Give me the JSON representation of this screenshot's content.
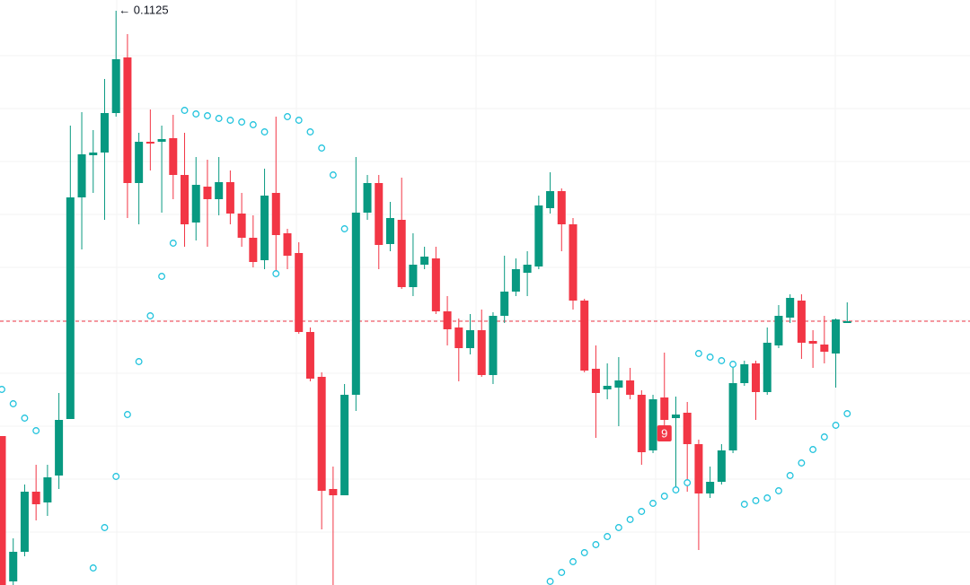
{
  "chart_data": {
    "type": "candlestick",
    "ylim": [
      0.0805,
      0.1131
    ],
    "up_color": "#089981",
    "down_color": "#f23645",
    "sar_color": "#22c3dd",
    "price_line": true,
    "price_line_color": "#f23645",
    "high_label": "← 0.1125",
    "event_label": "9",
    "open": [
      0.0888,
      0.0807,
      0.08235,
      0.0857,
      0.0851,
      0.0866,
      0.08975,
      0.1021,
      0.10445,
      0.1046,
      0.1068,
      0.1099,
      0.1029,
      0.1052,
      0.1052,
      0.1054,
      0.10335,
      0.1007,
      0.1027,
      0.102,
      0.10295,
      0.1012,
      0.09985,
      0.0986,
      0.10235,
      0.1001,
      0.099,
      0.0946,
      0.0921,
      0.08585,
      0.0855,
      0.0911,
      0.10125,
      0.1029,
      0.0995,
      0.10085,
      0.0971,
      0.09835,
      0.0987,
      0.09575,
      0.09485,
      0.0937,
      0.0947,
      0.0922,
      0.0955,
      0.09685,
      0.0979,
      0.09825,
      0.1015,
      0.10245,
      0.1006,
      0.09635,
      0.09255,
      0.0914,
      0.0915,
      0.0919,
      0.0911,
      0.088,
      0.09095,
      0.0898,
      0.0901,
      0.08835,
      0.0856,
      0.08625,
      0.088,
      0.09175,
      0.09285,
      0.09125,
      0.09385,
      0.0954,
      0.09635,
      0.0941,
      0.0939,
      0.0934,
      0.0951
    ],
    "high": [
      0.0888,
      0.0831,
      0.0861,
      0.0872,
      0.0872,
      0.0912,
      0.1061,
      0.10685,
      0.10585,
      0.1087,
      0.1125,
      0.1112,
      0.1057,
      0.107,
      0.1061,
      0.1067,
      0.1057,
      0.10435,
      0.1042,
      0.10435,
      0.1036,
      0.10235,
      0.1011,
      0.1037,
      0.1066,
      0.10035,
      0.0996,
      0.09485,
      0.09235,
      0.0871,
      0.0917,
      0.10435,
      0.10335,
      0.10335,
      0.10185,
      0.1032,
      0.1001,
      0.09935,
      0.09935,
      0.0966,
      0.09535,
      0.0956,
      0.09585,
      0.0957,
      0.09885,
      0.0987,
      0.0991,
      0.1022,
      0.1035,
      0.1026,
      0.10095,
      0.09645,
      0.09385,
      0.09285,
      0.0932,
      0.0926,
      0.09135,
      0.0911,
      0.09345,
      0.091,
      0.0907,
      0.0886,
      0.0871,
      0.08835,
      0.09285,
      0.093,
      0.093,
      0.09485,
      0.0961,
      0.0967,
      0.0967,
      0.0947,
      0.0955,
      0.09535,
      0.09625
    ],
    "low": [
      0.0805,
      0.0805,
      0.0821,
      0.0841,
      0.08435,
      0.08585,
      0.08975,
      0.0992,
      0.10235,
      0.10085,
      0.1066,
      0.10095,
      0.1006,
      0.1036,
      0.10125,
      0.102,
      0.09935,
      0.0997,
      0.09935,
      0.1011,
      0.1006,
      0.09935,
      0.0982,
      0.0981,
      0.09785,
      0.0981,
      0.0945,
      0.09185,
      0.0836,
      0.0805,
      0.0855,
      0.0902,
      0.10085,
      0.0981,
      0.0991,
      0.097,
      0.0966,
      0.0981,
      0.0956,
      0.09385,
      0.09185,
      0.09335,
      0.0921,
      0.0917,
      0.0951,
      0.0966,
      0.0966,
      0.0981,
      0.1012,
      0.0991,
      0.09585,
      0.09235,
      0.0887,
      0.09085,
      0.08935,
      0.09085,
      0.0872,
      0.08785,
      0.0886,
      0.08575,
      0.0857,
      0.08245,
      0.08535,
      0.0861,
      0.08785,
      0.0916,
      0.0897,
      0.0911,
      0.0937,
      0.0951,
      0.0931,
      0.0926,
      0.09285,
      0.0915,
      0.0951
    ],
    "close": [
      0.0805,
      0.08235,
      0.0857,
      0.085,
      0.0865,
      0.0897,
      0.1021,
      0.1045,
      0.1046,
      0.1068,
      0.1098,
      0.1029,
      0.1052,
      0.1051,
      0.10535,
      0.10335,
      0.1006,
      0.1028,
      0.102,
      0.10295,
      0.1012,
      0.09985,
      0.0985,
      0.1022,
      0.1,
      0.09885,
      0.0946,
      0.092,
      0.08575,
      0.0855,
      0.0911,
      0.10125,
      0.1029,
      0.09945,
      0.10095,
      0.0971,
      0.09835,
      0.0988,
      0.09575,
      0.09475,
      0.0937,
      0.0947,
      0.0922,
      0.0955,
      0.09685,
      0.0981,
      0.09835,
      0.10165,
      0.10245,
      0.1006,
      0.09635,
      0.09245,
      0.0912,
      0.0916,
      0.0919,
      0.0911,
      0.0879,
      0.09085,
      0.0897,
      0.09,
      0.08835,
      0.0856,
      0.08625,
      0.088,
      0.09175,
      0.0928,
      0.09125,
      0.094,
      0.0955,
      0.0965,
      0.094,
      0.09395,
      0.0935,
      0.0953,
      0.0952
    ],
    "sar": [
      0.0914,
      0.0906,
      0.0898,
      0.0891,
      null,
      null,
      null,
      null,
      0.08145,
      0.0837,
      0.08655,
      0.09,
      0.09295,
      0.0955,
      0.0977,
      0.09955,
      0.10695,
      0.10675,
      0.10665,
      0.1065,
      0.1064,
      0.1063,
      0.10615,
      0.10575,
      0.09785,
      0.1066,
      0.1064,
      0.10575,
      0.10485,
      0.10335,
      0.10035,
      null,
      null,
      null,
      null,
      null,
      null,
      null,
      null,
      null,
      null,
      null,
      null,
      null,
      null,
      null,
      null,
      null,
      0.0807,
      0.0812,
      0.0818,
      0.0823,
      0.08275,
      0.0832,
      0.0837,
      0.08415,
      0.0846,
      0.08505,
      0.08545,
      0.0858,
      0.0862,
      0.0934,
      0.0932,
      0.093,
      0.0928,
      0.085,
      0.0852,
      0.08535,
      0.08575,
      0.0866,
      0.0873,
      0.08805,
      0.08875,
      0.0894,
      0.09005
    ]
  }
}
